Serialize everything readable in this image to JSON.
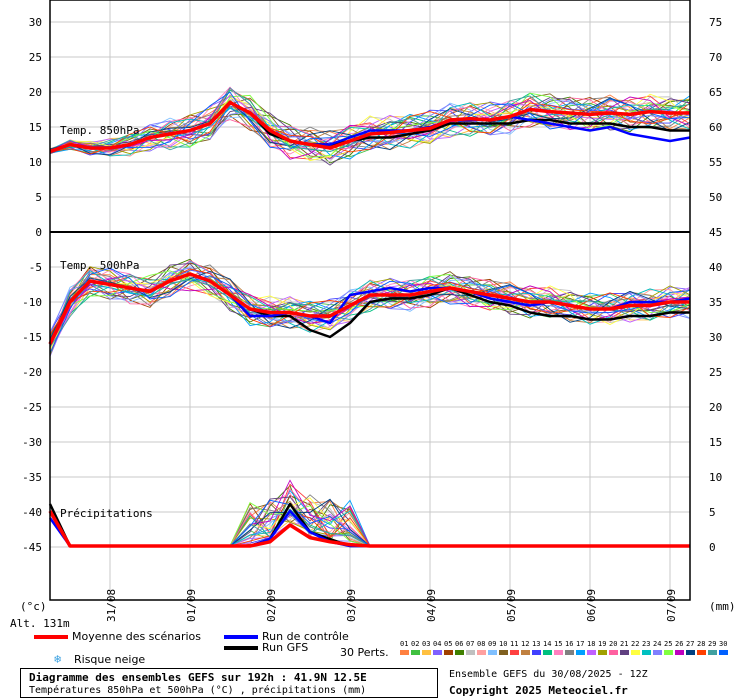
{
  "chart_data": {
    "type": "line",
    "title": "Diagramme des ensembles GEFS sur 192h : 41.9N 12.5E",
    "subtitle": "Températures 850hPa et 500hPa (°C) , précipitations (mm)",
    "run_info": "Ensemble GEFS du 30/08/2025 - 12Z",
    "copyright": "Copyright 2025 Meteociel.fr",
    "altitude": "Alt. 131m",
    "left_unit": "(°c)",
    "right_unit": "(mm)",
    "date_labels": [
      "31/08",
      "01/09",
      "02/09",
      "03/09",
      "04/09",
      "05/09",
      "06/09",
      "07/09"
    ],
    "left_ticks_top": [
      "30",
      "25",
      "20",
      "15",
      "10",
      "5",
      "0"
    ],
    "left_ticks_bottom": [
      "-5",
      "-10",
      "-15",
      "-20",
      "-25",
      "-30",
      "-35",
      "-40",
      "-45"
    ],
    "right_ticks_top": [
      "75",
      "70",
      "65",
      "60",
      "55",
      "50",
      "45"
    ],
    "right_ticks_bottom": [
      "40",
      "35",
      "30",
      "25",
      "20",
      "15",
      "10",
      "5",
      "0"
    ],
    "panel_labels": {
      "t850": "Temp. 850hPa",
      "t500": "Temp. 500hPa",
      "precip": "Précipitations"
    },
    "x_hours": [
      0,
      6,
      12,
      18,
      24,
      30,
      36,
      42,
      48,
      54,
      60,
      66,
      72,
      78,
      84,
      90,
      96,
      102,
      108,
      114,
      120,
      126,
      132,
      138,
      144,
      150,
      156,
      162,
      168,
      174,
      180,
      186,
      192
    ],
    "series": [
      {
        "name": "Moyenne des scénarios",
        "color": "#ff0000",
        "t850": [
          11.5,
          12.5,
          12,
          12,
          12.5,
          13.5,
          14,
          14.5,
          15.5,
          18.5,
          17,
          14.5,
          13,
          12.5,
          12,
          13,
          14,
          14.2,
          14.5,
          14.8,
          16,
          16.2,
          16,
          16.5,
          17.5,
          17.2,
          17,
          16.8,
          17,
          16.8,
          17.2,
          17,
          17
        ],
        "t500": [
          -16,
          -10,
          -7,
          -7.5,
          -8,
          -8.5,
          -7,
          -6,
          -7,
          -9,
          -11,
          -11.5,
          -11.5,
          -12,
          -12,
          -10.5,
          -9,
          -9,
          -9,
          -8.5,
          -8,
          -8.5,
          -9,
          -9.5,
          -10,
          -10,
          -10.5,
          -11,
          -11,
          -10.5,
          -10.5,
          -10,
          -10
        ],
        "precip": [
          2.5,
          0,
          0,
          0,
          0,
          0,
          0,
          0,
          0,
          0,
          0,
          0.3,
          1.5,
          0.6,
          0.3,
          0.1,
          0,
          0,
          0,
          0,
          0,
          0,
          0,
          0,
          0,
          0,
          0,
          0,
          0,
          0,
          0,
          0,
          0
        ]
      },
      {
        "name": "Run de contrôle",
        "color": "#0000ff",
        "t850": [
          11.5,
          12.5,
          12,
          12,
          12.5,
          13.5,
          14,
          14.5,
          15.5,
          18.5,
          17,
          14.5,
          13,
          12.5,
          12.5,
          13.5,
          14.5,
          14.5,
          14.5,
          15,
          16,
          16,
          16,
          16.5,
          16,
          15.5,
          15,
          14.5,
          15,
          14,
          13.5,
          13,
          13.5
        ],
        "t500": [
          -16,
          -10,
          -7,
          -7.5,
          -8,
          -8.5,
          -7,
          -6,
          -7,
          -9,
          -12,
          -12,
          -11.5,
          -12,
          -13,
          -9,
          -8.5,
          -8,
          -8.5,
          -8,
          -8,
          -8.5,
          -9.5,
          -10,
          -10.5,
          -10,
          -10.5,
          -11,
          -11,
          -10,
          -10,
          -10,
          -9.5
        ],
        "precip": [
          2,
          0,
          0,
          0,
          0,
          0,
          0,
          0,
          0,
          0,
          0,
          0.5,
          2.5,
          1,
          0.3,
          0,
          0,
          0,
          0,
          0,
          0,
          0,
          0,
          0,
          0,
          0,
          0,
          0,
          0,
          0,
          0,
          0,
          0
        ]
      },
      {
        "name": "Run GFS",
        "color": "#000000",
        "t850": [
          11.5,
          12.5,
          12,
          12,
          12.5,
          13.5,
          14,
          14.5,
          15.5,
          18.5,
          17,
          14,
          13,
          12.5,
          12.5,
          13,
          13.5,
          13.5,
          14,
          14.5,
          15.5,
          15.5,
          15.5,
          15.5,
          16,
          16,
          15.5,
          15.5,
          15.5,
          15,
          15,
          14.5,
          14.5
        ],
        "t500": [
          -16,
          -10,
          -7,
          -7.5,
          -8,
          -8.5,
          -7,
          -6,
          -7,
          -9,
          -11,
          -12,
          -12,
          -14,
          -15,
          -13,
          -10,
          -9.5,
          -9.5,
          -9,
          -8,
          -9,
          -10,
          -10.5,
          -11.5,
          -12,
          -12,
          -12.5,
          -12.5,
          -12,
          -12,
          -11.5,
          -11.5
        ],
        "precip": [
          3,
          0,
          0,
          0,
          0,
          0,
          0,
          0,
          0,
          0,
          0,
          0.5,
          3,
          1,
          0.5,
          0,
          0,
          0,
          0,
          0,
          0,
          0,
          0,
          0,
          0,
          0,
          0,
          0,
          0,
          0,
          0,
          0,
          0
        ]
      }
    ],
    "legend": {
      "mean": "Moyenne des scénarios",
      "control": "Run de contrôle",
      "gfs": "Run GFS",
      "snow": "Risque neige",
      "perts": "30 Perts."
    },
    "pert_labels": [
      "01",
      "02",
      "03",
      "04",
      "05",
      "06",
      "07",
      "08",
      "09",
      "10",
      "11",
      "12",
      "13",
      "14",
      "15",
      "16",
      "17",
      "18",
      "19",
      "20",
      "21",
      "22",
      "23",
      "24",
      "25",
      "26",
      "27",
      "28",
      "29",
      "30"
    ],
    "pert_colors": [
      "#ff8040",
      "#40c040",
      "#ffc040",
      "#8060ff",
      "#a04000",
      "#408000",
      "#c0c0c0",
      "#ffa0a0",
      "#80c0ff",
      "#806020",
      "#ff4040",
      "#c08040",
      "#4040ff",
      "#00c080",
      "#ff80c0",
      "#808080",
      "#00a0ff",
      "#c060ff",
      "#a0a000",
      "#ff60a0",
      "#604080",
      "#ffff40",
      "#00c0c0",
      "#8080ff",
      "#80ff40",
      "#c000c0",
      "#004080",
      "#ff4000",
      "#40a0a0",
      "#0060ff"
    ],
    "x_range_hours": [
      0,
      192
    ],
    "t_range": [
      -55,
      30
    ],
    "grid": true
  }
}
